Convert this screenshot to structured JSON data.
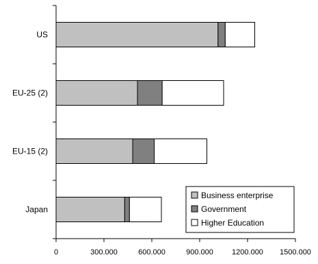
{
  "chart_data": {
    "type": "bar",
    "orientation": "horizontal",
    "stacked": true,
    "categories": [
      "US",
      "EU-25 (2)",
      "EU-15 (2)",
      "Japan"
    ],
    "series": [
      {
        "name": "Business enterprise",
        "values": [
          1015000,
          510000,
          480000,
          430000
        ],
        "color": "#c0c0c0"
      },
      {
        "name": "Government",
        "values": [
          45000,
          155000,
          135000,
          30000
        ],
        "color": "#808080"
      },
      {
        "name": "Higher Education",
        "values": [
          185000,
          385000,
          330000,
          200000
        ],
        "color": "#ffffff"
      }
    ],
    "x_ticks": [
      "0",
      "300.000",
      "600.000",
      "900.000",
      "1200.000",
      "1500.000"
    ],
    "xlim": [
      0,
      1500000
    ],
    "grid": false,
    "legend": {
      "position": "bottom-right"
    },
    "title": "",
    "xlabel": "",
    "ylabel": ""
  }
}
